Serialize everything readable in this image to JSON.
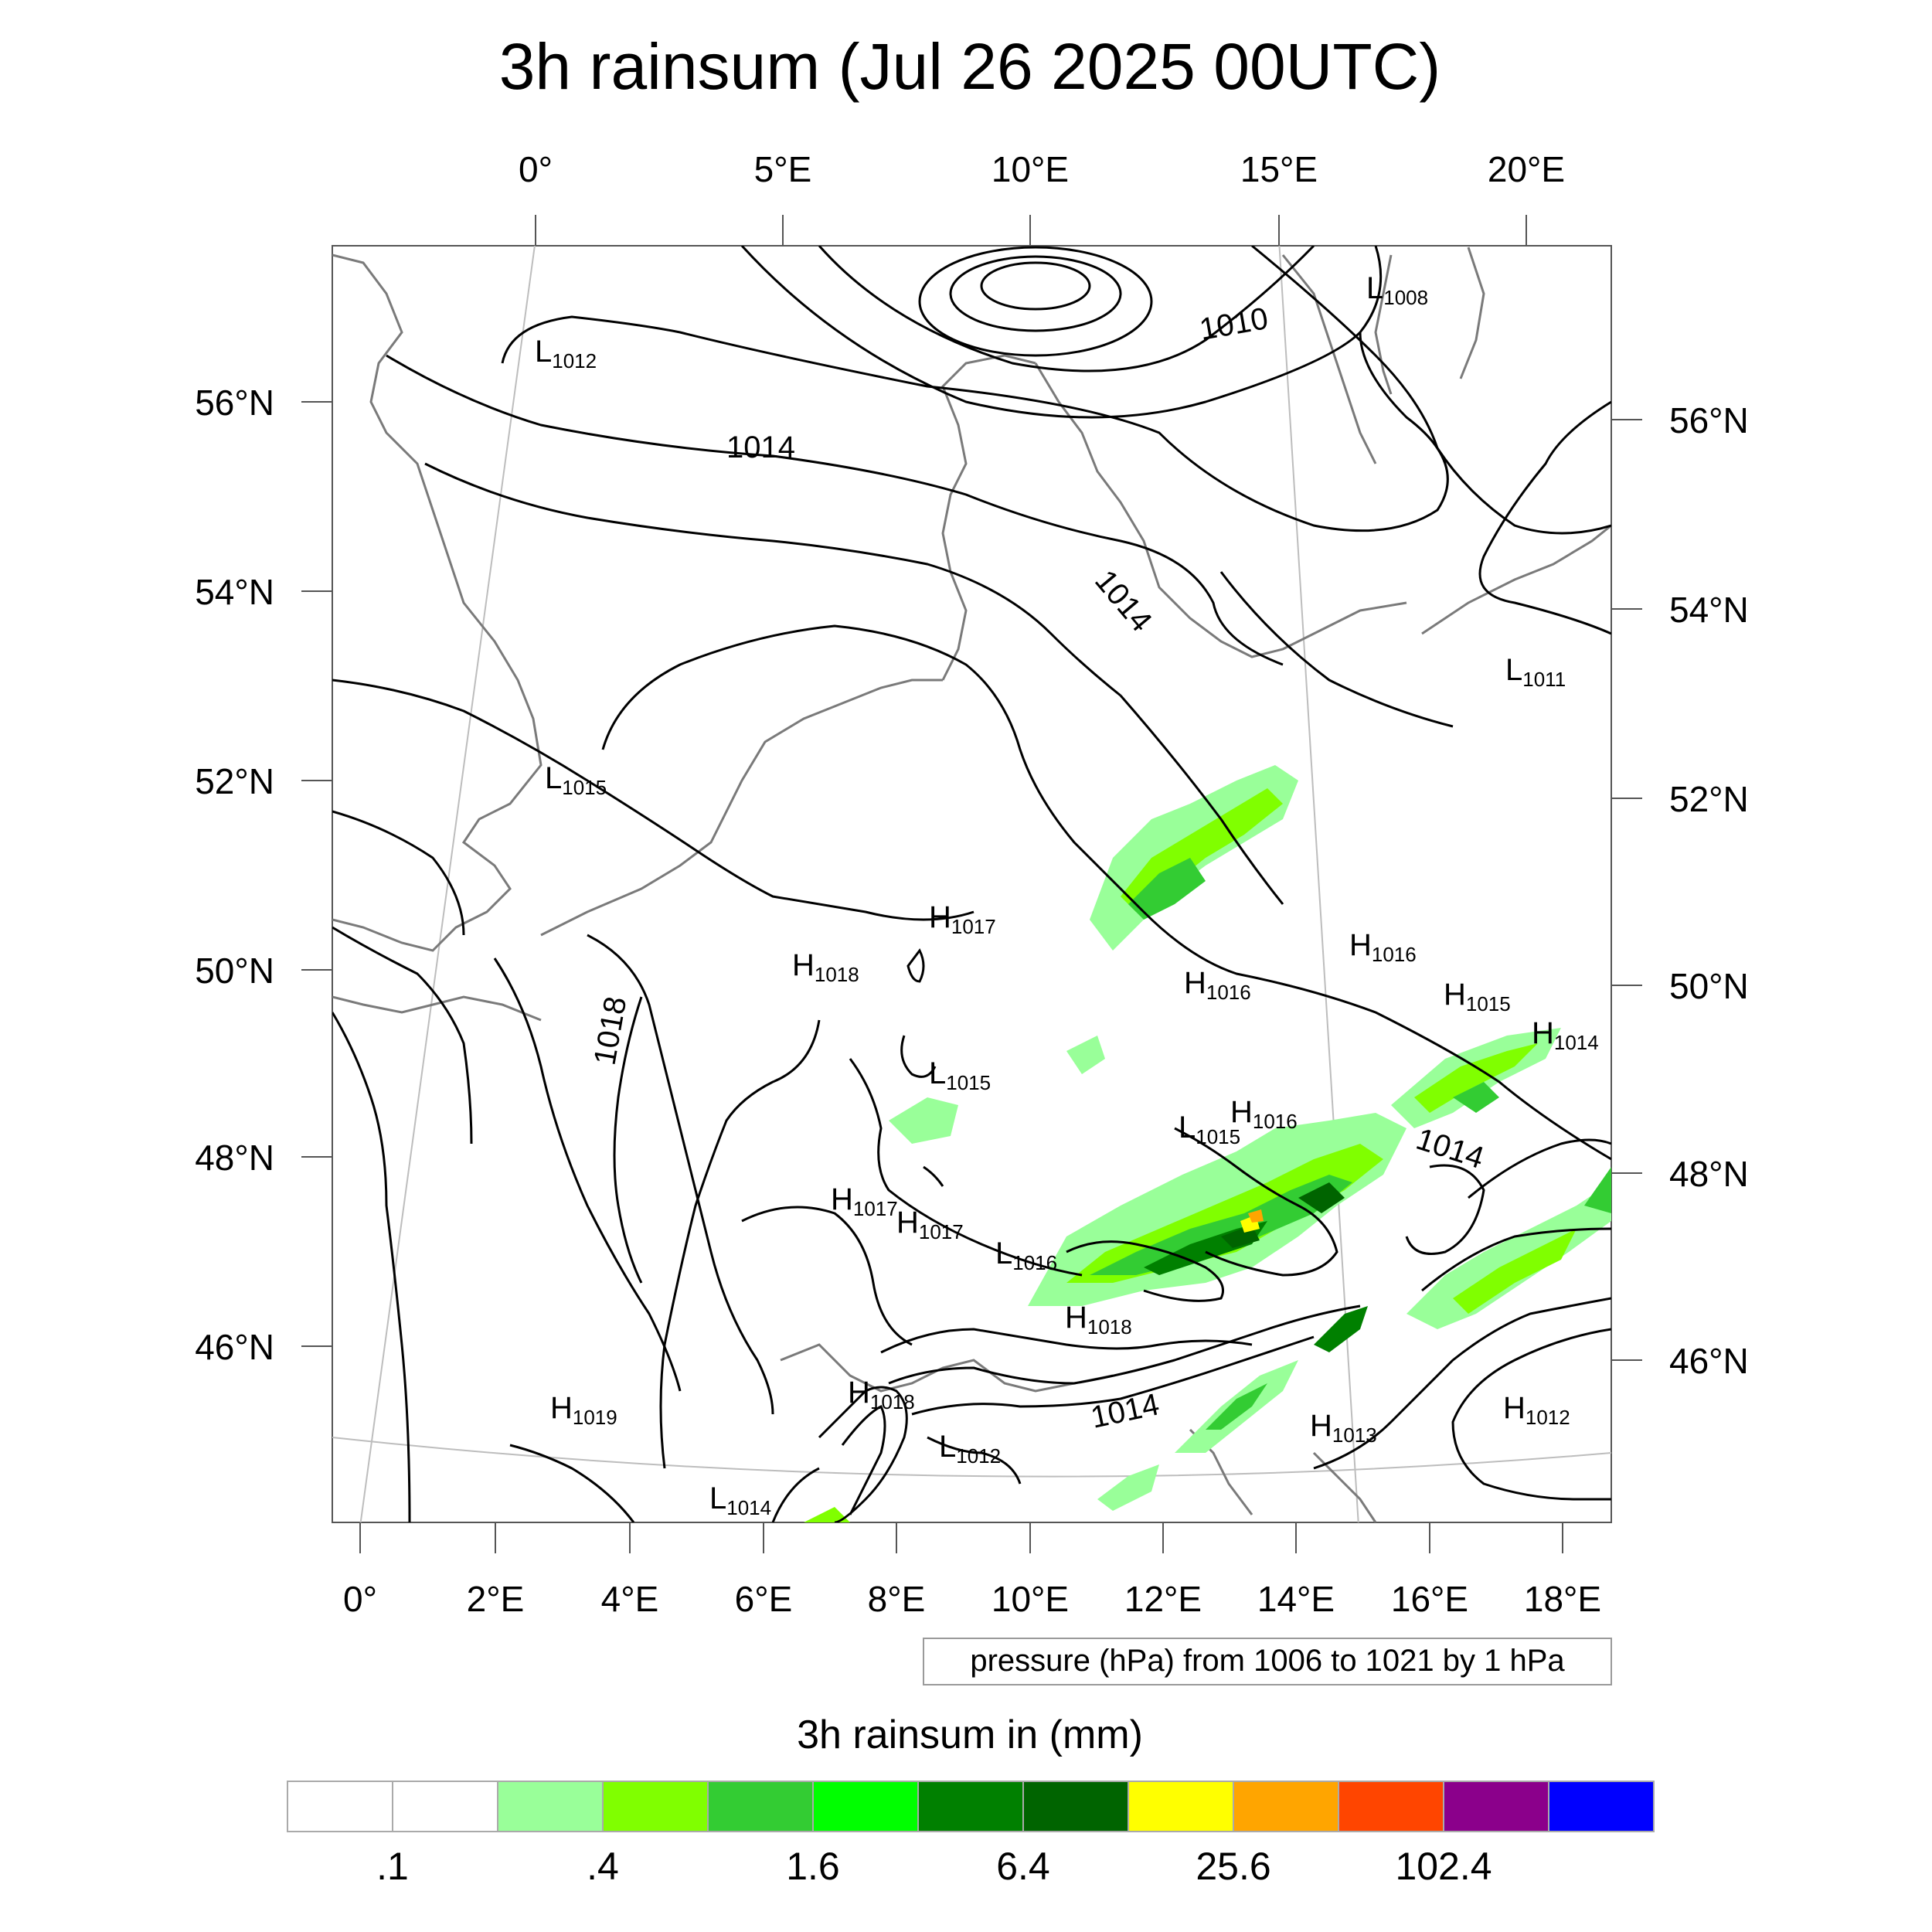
{
  "title": "3h rainsum (Jul 26 2025 00UTC)",
  "axes": {
    "top_lon_labels": [
      "0°",
      "5°E",
      "10°E",
      "15°E",
      "20°E"
    ],
    "bottom_lon_labels": [
      "0°",
      "2°E",
      "4°E",
      "6°E",
      "8°E",
      "10°E",
      "12°E",
      "14°E",
      "16°E",
      "18°E"
    ],
    "left_lat_labels": [
      "56°N",
      "54°N",
      "52°N",
      "50°N",
      "48°N",
      "46°N"
    ],
    "right_lat_labels": [
      "56°N",
      "54°N",
      "52°N",
      "50°N",
      "48°N",
      "46°N"
    ]
  },
  "contour_info": "pressure (hPa) from 1006 to 1021 by 1 hPa",
  "isobar_labels": [
    "1010",
    "1014",
    "1014",
    "1018",
    "1014",
    "1014"
  ],
  "pressure_centers": [
    {
      "type": "L",
      "value": "1008"
    },
    {
      "type": "L",
      "value": "1012"
    },
    {
      "type": "L",
      "value": "1011"
    },
    {
      "type": "L",
      "value": "1015"
    },
    {
      "type": "H",
      "value": "1017"
    },
    {
      "type": "H",
      "value": "1018"
    },
    {
      "type": "H",
      "value": "1016"
    },
    {
      "type": "H",
      "value": "1016"
    },
    {
      "type": "H",
      "value": "1015"
    },
    {
      "type": "H",
      "value": "1014"
    },
    {
      "type": "L",
      "value": "1015"
    },
    {
      "type": "L",
      "value": "1015"
    },
    {
      "type": "H",
      "value": "1016"
    },
    {
      "type": "H",
      "value": "1017"
    },
    {
      "type": "H",
      "value": "1017"
    },
    {
      "type": "L",
      "value": "1016"
    },
    {
      "type": "H",
      "value": "1018"
    },
    {
      "type": "H",
      "value": "1019"
    },
    {
      "type": "H",
      "value": "1018"
    },
    {
      "type": "L",
      "value": "1012"
    },
    {
      "type": "L",
      "value": "1014"
    },
    {
      "type": "H",
      "value": "1013"
    },
    {
      "type": "H",
      "value": "1012"
    }
  ],
  "colorbar": {
    "title": "3h rainsum in (mm)",
    "colors": [
      "#ffffff",
      "#ffffff",
      "#99ff99",
      "#80ff00",
      "#33cc33",
      "#00ff00",
      "#008000",
      "#006400",
      "#ffff00",
      "#ffa500",
      "#ff4500",
      "#8b008b",
      "#0000ff"
    ],
    "labels": [
      ".1",
      ".4",
      "1.6",
      "6.4",
      "25.6",
      "102.4"
    ]
  },
  "colors": {
    "rain_light": "#99ff99",
    "rain_lime": "#80ff00",
    "rain_mid": "#33cc33",
    "rain_bright": "#00ff00",
    "rain_dark": "#008000",
    "rain_darkest": "#006400",
    "rain_yellow": "#ffff00",
    "rain_orange": "#ffa500",
    "coastline": "#7a7a7a",
    "isobar": "#000000"
  }
}
